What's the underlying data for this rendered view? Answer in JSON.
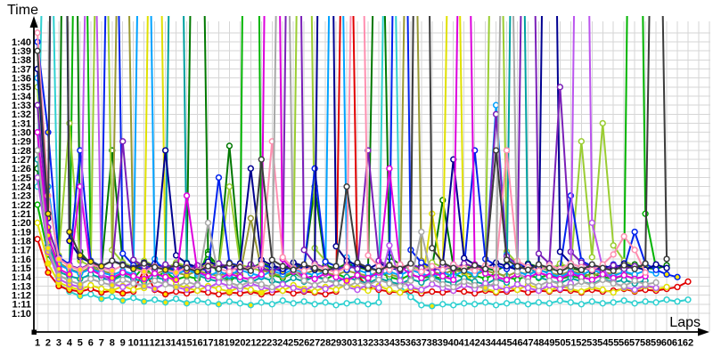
{
  "chart_data": {
    "type": "line",
    "title": "",
    "ylabel": "Time",
    "xlabel": "Laps",
    "y_unit": "m:ss",
    "ylim_seconds": [
      70,
      100
    ],
    "grid": true,
    "legend": "none",
    "marker": "circle",
    "colors": {
      "axis": "#000000",
      "grid": "#d6d6d6",
      "marker_fill": "#ffffff",
      "pb_marker_fill": "#ffe400"
    },
    "y_ticks": [
      "1:40",
      "1:39",
      "1:38",
      "1:37",
      "1:36",
      "1:35",
      "1:34",
      "1:33",
      "1:32",
      "1:31",
      "1:30",
      "1:29",
      "1:28",
      "1:27",
      "1:26",
      "1:25",
      "1:24",
      "1:23",
      "1:22",
      "1:21",
      "1:20",
      "1:19",
      "1:18",
      "1:17",
      "1:16",
      "1:15",
      "1:14",
      "1:13",
      "1:12",
      "1:11",
      "1:10"
    ],
    "x_ticks": [
      1,
      2,
      3,
      4,
      5,
      6,
      7,
      8,
      9,
      10,
      11,
      12,
      13,
      14,
      15,
      16,
      17,
      18,
      19,
      20,
      21,
      22,
      23,
      24,
      25,
      26,
      27,
      28,
      29,
      30,
      31,
      32,
      33,
      34,
      35,
      36,
      37,
      38,
      39,
      40,
      41,
      42,
      43,
      44,
      45,
      46,
      47,
      48,
      49,
      50,
      51,
      52,
      53,
      54,
      55,
      56,
      57,
      58,
      59,
      60,
      61,
      62
    ],
    "series": [
      {
        "name": "turquoise",
        "color": "#2fd0d0",
        "values": [
          84.0,
          135.0,
          73.2,
          72.4,
          71.9,
          72.1,
          71.6,
          71.8,
          71.4,
          71.7,
          71.3,
          71.5,
          71.2,
          71.6,
          71.1,
          71.4,
          71.2,
          71.0,
          71.3,
          71.1,
          70.9,
          71.2,
          71.0,
          71.4,
          71.1,
          71.3,
          71.0,
          71.2,
          70.9,
          71.1,
          71.3,
          71.0,
          71.2,
          150.0,
          73.0,
          71.8,
          70.9,
          70.8,
          71.0,
          70.9,
          71.1,
          71.0,
          71.2,
          70.9,
          71.1,
          71.3,
          71.0,
          71.2,
          71.1,
          71.4,
          71.2,
          71.0,
          71.3,
          71.1,
          71.2,
          71.4,
          71.1,
          71.3,
          71.2,
          71.5,
          71.3,
          71.5
        ]
      },
      {
        "name": "red",
        "color": "#e10000",
        "values": [
          78.2,
          74.5,
          73.0,
          72.6,
          72.4,
          72.7,
          72.3,
          72.5,
          72.2,
          72.4,
          74.8,
          72.6,
          72.1,
          72.4,
          72.2,
          72.5,
          72.3,
          72.1,
          72.3,
          72.2,
          72.4,
          72.1,
          72.3,
          72.5,
          72.2,
          72.4,
          72.3,
          72.1,
          72.4,
          150.0,
          74.2,
          72.9,
          72.6,
          72.4,
          72.3,
          72.5,
          72.2,
          72.4,
          72.3,
          72.5,
          72.4,
          72.2,
          72.5,
          72.3,
          72.4,
          72.6,
          72.3,
          72.5,
          72.4,
          72.6,
          72.5,
          72.3,
          72.6,
          72.4,
          72.5,
          72.7,
          72.4,
          72.6,
          72.5,
          72.7,
          72.9,
          73.5
        ]
      },
      {
        "name": "green",
        "color": "#00b400",
        "values": [
          82.0,
          76.5,
          74.2,
          73.6,
          165.0,
          75.5,
          74.0,
          73.7,
          74.3,
          73.8,
          75.2,
          73.9,
          74.6,
          73.7,
          74.1,
          73.8,
          76.8,
          74.0,
          73.6,
          74.2,
          210.0,
          75.8,
          74.3,
          73.9,
          74.5,
          73.8,
          74.2,
          73.7,
          74.4,
          73.9,
          74.1,
          73.8,
          74.6,
          74.0,
          73.7,
          74.3,
          73.9,
          74.1,
          73.8,
          74.4,
          73.9,
          74.2,
          73.8,
          74.5,
          74.0,
          73.7,
          74.2,
          73.9,
          74.3,
          73.8,
          74.1,
          73.9,
          74.4,
          74.0,
          73.8,
          74.2,
          175.0,
          81.0,
          75.0
        ]
      },
      {
        "name": "darkgreen",
        "color": "#007800",
        "values": [
          86.0,
          77.5,
          75.2,
          190.0,
          76.8,
          75.4,
          74.9,
          88.0,
          75.6,
          75.1,
          74.8,
          75.5,
          75.0,
          74.7,
          75.3,
          160.0,
          76.5,
          75.2,
          88.5,
          75.4,
          74.9,
          75.6,
          75.1,
          74.8,
          75.4,
          75.0,
          84.0,
          75.3,
          74.9,
          75.5,
          75.1,
          74.8,
          140.0,
          76.2,
          75.4,
          74.9,
          75.3,
          75.0,
          82.5,
          75.2,
          74.8,
          75.4,
          75.0,
          74.7,
          75.3,
          74.9,
          75.5,
          75.1,
          74.8,
          75.4,
          75.0,
          74.7,
          75.3,
          74.9,
          75.2,
          74.8,
          75.4,
          75.0,
          74.9,
          75.3
        ]
      },
      {
        "name": "yellowgreen",
        "color": "#9acd32",
        "values": [
          95.0,
          79.0,
          76.4,
          91.0,
          75.8,
          75.2,
          150.0,
          77.0,
          75.6,
          75.1,
          75.8,
          75.3,
          74.9,
          75.6,
          75.2,
          74.8,
          75.5,
          75.0,
          84.0,
          75.4,
          75.0,
          74.7,
          75.3,
          74.9,
          75.6,
          170.0,
          77.2,
          75.8,
          75.2,
          74.8,
          75.5,
          75.0,
          74.7,
          75.4,
          74.9,
          75.3,
          74.8,
          75.6,
          75.1,
          74.8,
          75.4,
          75.0,
          74.6,
          155.0,
          76.8,
          75.5,
          74.9,
          75.3,
          74.8,
          75.5,
          75.0,
          89.0,
          76.2,
          91.0,
          77.5,
          75.8,
          75.2,
          74.9
        ]
      },
      {
        "name": "olive",
        "color": "#999933",
        "values": [
          88.0,
          78.3,
          75.6,
          74.9,
          74.5,
          75.1,
          74.7,
          74.4,
          145.0,
          75.9,
          74.6,
          74.3,
          74.8,
          74.5,
          74.2,
          74.7,
          74.4,
          74.1,
          74.6,
          74.3,
          80.5,
          74.8,
          74.4,
          74.1,
          74.6,
          74.3,
          74.8,
          74.5,
          74.2,
          74.7,
          74.4,
          74.1,
          74.6,
          74.3,
          74.0,
          150.0,
          75.8,
          74.6,
          74.3,
          74.8,
          74.5,
          74.2,
          74.7,
          74.4,
          74.1,
          74.6,
          74.3,
          74.8,
          74.5,
          74.2,
          74.7,
          74.4,
          74.1,
          74.6,
          74.3,
          74.5,
          74.2
        ]
      },
      {
        "name": "yellow",
        "color": "#e0e000",
        "values": [
          80.0,
          75.5,
          73.4,
          72.9,
          72.6,
          73.1,
          72.7,
          72.5,
          73.0,
          72.6,
          72.8,
          160.0,
          74.5,
          73.2,
          72.8,
          72.5,
          73.0,
          72.7,
          72.4,
          72.9,
          72.6,
          72.3,
          72.8,
          72.5,
          73.1,
          72.7,
          72.4,
          72.9,
          72.6,
          73.2,
          72.8,
          72.5,
          73.0,
          72.6,
          72.3,
          72.8,
          72.5,
          81.0,
          74.0,
          150.0,
          74.6,
          73.1,
          72.7,
          72.4,
          72.9,
          72.6,
          73.1,
          72.8,
          72.5,
          73.0,
          72.7,
          72.4,
          72.9,
          72.6,
          72.3,
          72.8,
          72.5,
          73.0,
          72.7,
          72.9
        ]
      },
      {
        "name": "teal",
        "color": "#00a0a0",
        "values": [
          87.0,
          77.8,
          74.6,
          74.1,
          73.8,
          74.3,
          73.9,
          73.6,
          74.2,
          73.8,
          73.5,
          74.0,
          73.7,
          170.0,
          75.6,
          74.2,
          73.8,
          73.5,
          74.1,
          73.7,
          73.4,
          74.0,
          73.6,
          73.3,
          73.9,
          73.5,
          74.1,
          73.7,
          73.4,
          74.0,
          73.6,
          73.3,
          73.9,
          73.5,
          73.2,
          73.8,
          73.4,
          74.0,
          73.6,
          73.3,
          73.9,
          73.5,
          73.2,
          73.8,
          73.4,
          165.0,
          75.4,
          74.0,
          73.6,
          73.3,
          73.9,
          73.5,
          73.2,
          73.8,
          73.4,
          73.7,
          73.3,
          73.6
        ]
      },
      {
        "name": "skyblue",
        "color": "#00a2ff",
        "values": [
          96.0,
          84.0,
          75.4,
          74.8,
          74.4,
          74.9,
          74.5,
          74.2,
          74.7,
          74.3,
          155.0,
          76.0,
          74.6,
          74.3,
          74.8,
          74.4,
          74.1,
          74.6,
          74.2,
          74.8,
          74.4,
          74.1,
          74.7,
          74.3,
          74.9,
          74.5,
          74.2,
          74.6,
          160.0,
          76.2,
          74.8,
          74.4,
          74.1,
          74.6,
          74.2,
          74.8,
          74.4,
          74.0,
          74.5,
          74.1,
          74.7,
          74.3,
          74.9,
          93.0,
          76.5,
          74.6,
          74.2,
          74.8,
          74.4,
          74.0,
          74.6,
          74.2,
          74.8,
          74.4,
          74.1,
          74.6,
          74.3,
          74.7,
          74.4
        ]
      },
      {
        "name": "blue",
        "color": "#0022ee",
        "values": [
          100.0,
          90.0,
          76.2,
          75.4,
          88.0,
          75.8,
          75.2,
          150.0,
          76.6,
          75.3,
          74.9,
          75.5,
          75.1,
          74.8,
          75.4,
          75.0,
          74.7,
          85.0,
          75.6,
          75.2,
          74.8,
          75.4,
          75.0,
          74.6,
          75.3,
          74.9,
          86.0,
          75.7,
          75.2,
          74.8,
          75.5,
          75.1,
          74.7,
          75.3,
          170.0,
          77.0,
          75.6,
          75.1,
          74.7,
          75.4,
          75.0,
          88.0,
          76.0,
          75.3,
          74.9,
          75.5,
          75.1,
          74.7,
          75.3,
          74.9,
          83.0,
          75.8,
          75.2,
          74.8,
          75.4,
          75.0,
          79.0,
          75.5,
          74.8,
          74.3,
          74.0
        ]
      },
      {
        "name": "navy",
        "color": "#000090",
        "values": [
          97.0,
          80.5,
          200.0,
          78.0,
          76.2,
          75.6,
          75.2,
          75.8,
          75.4,
          75.0,
          75.6,
          75.2,
          88.0,
          76.4,
          75.5,
          75.1,
          75.7,
          75.3,
          74.9,
          75.5,
          86.0,
          75.9,
          75.3,
          74.9,
          75.6,
          75.2,
          74.8,
          185.0,
          77.4,
          75.8,
          75.3,
          74.9,
          75.5,
          75.1,
          74.7,
          75.4,
          75.0,
          74.6,
          75.3,
          87.0,
          76.1,
          75.4,
          75.0,
          75.6,
          75.2,
          74.8,
          75.4,
          75.0,
          170.0,
          76.8,
          75.5,
          75.1,
          74.7,
          75.3,
          74.9,
          75.5,
          75.1,
          74.8,
          75.4,
          75.0
        ]
      },
      {
        "name": "purple",
        "color": "#7a1fb8",
        "values": [
          93.0,
          79.5,
          76.0,
          75.3,
          74.9,
          75.5,
          75.1,
          74.8,
          89.0,
          75.9,
          75.2,
          74.8,
          75.4,
          75.0,
          74.7,
          75.3,
          74.9,
          75.5,
          75.1,
          74.7,
          75.4,
          75.0,
          74.6,
          75.2,
          175.0,
          77.0,
          75.5,
          75.0,
          74.7,
          75.3,
          74.9,
          88.0,
          75.8,
          75.2,
          74.8,
          75.4,
          75.0,
          74.6,
          75.3,
          74.9,
          75.5,
          75.1,
          74.7,
          92.0,
          76.3,
          75.4,
          160.0,
          76.6,
          75.5,
          95.0,
          76.8,
          75.6,
          75.0,
          74.7,
          75.3,
          74.9,
          75.2
        ]
      },
      {
        "name": "magenta",
        "color": "#dd00dd",
        "values": [
          90.0,
          78.6,
          74.9,
          74.3,
          84.0,
          74.8,
          74.2,
          73.9,
          74.5,
          74.1,
          73.8,
          74.4,
          74.0,
          73.7,
          83.0,
          74.6,
          74.1,
          73.8,
          74.4,
          74.0,
          73.7,
          74.3,
          180.0,
          76.0,
          74.6,
          74.1,
          73.8,
          74.4,
          74.0,
          73.6,
          74.2,
          73.9,
          74.5,
          86.0,
          75.2,
          74.3,
          73.9,
          74.5,
          74.1,
          73.7,
          150.0,
          75.4,
          74.4,
          74.0,
          73.7,
          74.3,
          73.9,
          74.5,
          74.1,
          73.8,
          74.4,
          74.0,
          73.7,
          74.3,
          73.9,
          74.2,
          73.8,
          74.1
        ]
      },
      {
        "name": "orchid",
        "color": "#bb55ee",
        "values": [
          85.0,
          76.8,
          73.8,
          73.2,
          72.9,
          140.0,
          74.4,
          73.3,
          72.9,
          73.4,
          73.0,
          72.7,
          73.3,
          72.9,
          72.6,
          73.2,
          72.8,
          73.4,
          73.0,
          72.7,
          73.3,
          72.9,
          72.6,
          73.2,
          72.8,
          72.5,
          73.1,
          72.7,
          73.3,
          72.9,
          72.6,
          73.2,
          72.8,
          77.5,
          73.6,
          72.9,
          72.6,
          73.2,
          72.8,
          72.5,
          73.1,
          72.7,
          73.3,
          72.9,
          72.6,
          73.2,
          72.8,
          72.5,
          73.1,
          72.7,
          73.3,
          170.0,
          80.0,
          75.0,
          73.4,
          72.9,
          72.6,
          73.1,
          72.8
        ]
      },
      {
        "name": "pink",
        "color": "#ff8fb0",
        "values": [
          101.0,
          83.0,
          76.0,
          75.2,
          74.8,
          75.4,
          75.0,
          74.7,
          75.3,
          74.9,
          74.6,
          75.2,
          74.8,
          74.5,
          75.1,
          74.7,
          75.3,
          74.9,
          74.6,
          75.2,
          74.8,
          75.4,
          89.0,
          76.2,
          75.0,
          74.7,
          75.3,
          74.9,
          74.5,
          75.1,
          150.0,
          76.4,
          75.2,
          74.8,
          75.4,
          75.0,
          74.6,
          75.2,
          74.8,
          75.4,
          75.0,
          74.7,
          75.3,
          74.9,
          88.0,
          75.8,
          75.1,
          74.7,
          75.3,
          74.9,
          75.5,
          75.1,
          74.8,
          75.4,
          76.5,
          78.5,
          77.0,
          74.5
        ]
      },
      {
        "name": "gray",
        "color": "#a8a8a8",
        "values": [
          88.0,
          77.2,
          74.2,
          73.6,
          73.2,
          73.8,
          73.4,
          73.1,
          73.7,
          73.3,
          73.0,
          73.6,
          73.2,
          72.9,
          73.5,
          73.1,
          80.0,
          74.0,
          73.4,
          73.0,
          73.6,
          73.2,
          72.9,
          155.0,
          74.8,
          73.6,
          73.1,
          73.7,
          73.3,
          72.9,
          73.5,
          73.1,
          73.7,
          73.3,
          73.0,
          73.6,
          79.0,
          73.8,
          73.2,
          72.9,
          73.5,
          73.1,
          72.8,
          73.4,
          150.0,
          74.6,
          73.5,
          73.0,
          73.6,
          73.2,
          72.9,
          73.5,
          73.1,
          73.7,
          73.3,
          73.0,
          73.6,
          73.2,
          73.4
        ]
      },
      {
        "name": "charcoal",
        "color": "#3c3c3c",
        "values": [
          99.0,
          81.0,
          210.0,
          79.0,
          76.4,
          75.7,
          75.2,
          75.8,
          75.3,
          74.9,
          75.5,
          75.1,
          74.8,
          75.4,
          75.0,
          74.6,
          75.2,
          74.9,
          75.5,
          75.1,
          74.7,
          87.0,
          75.9,
          75.2,
          74.8,
          75.4,
          75.0,
          74.6,
          75.2,
          84.0,
          75.6,
          75.0,
          74.7,
          75.3,
          74.9,
          75.5,
          190.0,
          77.2,
          75.6,
          75.0,
          74.7,
          75.3,
          74.9,
          88.0,
          75.9,
          75.2,
          74.8,
          75.4,
          75.0,
          74.6,
          75.2,
          74.8,
          75.4,
          75.0,
          74.7,
          75.3,
          74.9,
          75.5,
          150.0,
          76.0
        ]
      }
    ]
  }
}
